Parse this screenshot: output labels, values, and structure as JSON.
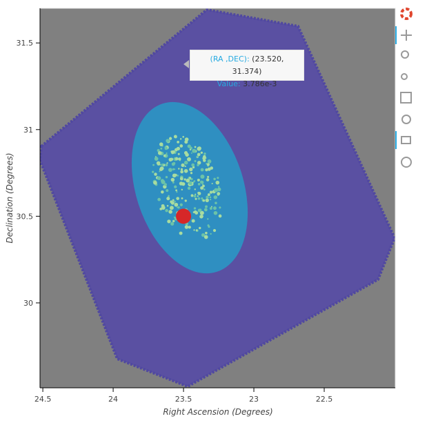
{
  "chart_data": {
    "type": "scatter",
    "xlabel": "Right Ascension (Degrees)",
    "ylabel": "Declination (Degrees)",
    "xlim": [
      24.52,
      21.995
    ],
    "ylim": [
      29.51,
      31.7
    ],
    "xticks": [
      24.5,
      24,
      23.5,
      23,
      22.5
    ],
    "yticks": [
      30,
      30.5,
      31,
      31.5
    ],
    "points": {
      "color": "#d62728",
      "x": [
        23.5
      ],
      "y": [
        30.5
      ]
    },
    "tooltip": {
      "coord_label": "(RA ,DEC):",
      "coord_value": "(23.520, 31.374)",
      "value_label": "Value:",
      "value": "3.786e-3"
    }
  }
}
